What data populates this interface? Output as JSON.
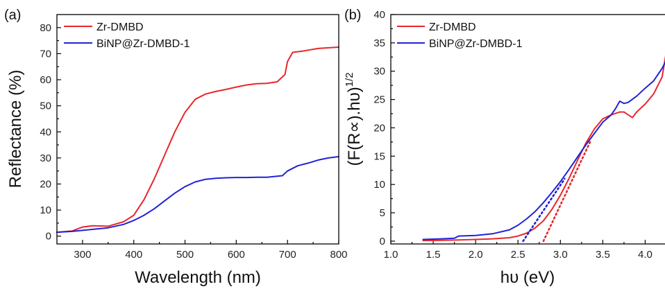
{
  "colors": {
    "red": "#e8262a",
    "blue": "#2121d6"
  },
  "chart_data": [
    {
      "panel_label": "(a)",
      "type": "line",
      "xlabel": "Wavelength (nm)",
      "ylabel": "Reflectance (%)",
      "xlim": [
        250,
        800
      ],
      "ylim": [
        -3,
        85
      ],
      "xticks": [
        300,
        400,
        500,
        600,
        700,
        800
      ],
      "yticks": [
        0,
        10,
        20,
        30,
        40,
        50,
        60,
        70,
        80
      ],
      "legend_position": "top-left",
      "series": [
        {
          "name": "Zr-DMBD",
          "color": "#e8262a",
          "x": [
            250,
            280,
            300,
            320,
            350,
            380,
            400,
            420,
            440,
            460,
            480,
            500,
            520,
            540,
            560,
            580,
            600,
            620,
            640,
            660,
            680,
            695,
            700,
            710,
            730,
            760,
            800
          ],
          "y": [
            1.5,
            2,
            3.5,
            4,
            3.8,
            5.5,
            8,
            14,
            22,
            31,
            40,
            47.5,
            52.5,
            54.5,
            55.5,
            56.3,
            57.2,
            58,
            58.5,
            58.6,
            59.2,
            62,
            67,
            70.5,
            71,
            72,
            72.5
          ]
        },
        {
          "name": "BiNP@Zr-DMBD-1",
          "color": "#2121d6",
          "x": [
            250,
            280,
            300,
            320,
            350,
            380,
            400,
            420,
            440,
            460,
            480,
            500,
            520,
            540,
            560,
            580,
            600,
            620,
            640,
            660,
            690,
            700,
            720,
            740,
            760,
            780,
            800
          ],
          "y": [
            1.5,
            1.8,
            2.2,
            2.6,
            3.2,
            4.5,
            6,
            8,
            10.5,
            13.5,
            16.5,
            19,
            20.8,
            21.8,
            22.2,
            22.4,
            22.5,
            22.5,
            22.6,
            22.6,
            23.2,
            25,
            27,
            28,
            29.2,
            30,
            30.5
          ]
        }
      ]
    },
    {
      "panel_label": "(b)",
      "type": "line",
      "xlabel": "hυ (eV)",
      "ylabel": "(F(R∝).hυ)",
      "ylabel_superscript": "1/2",
      "xlim": [
        1.0,
        4.25
      ],
      "ylim": [
        -0.5,
        40
      ],
      "xticks": [
        1.0,
        1.5,
        2.0,
        2.5,
        3.0,
        3.5,
        4.0
      ],
      "yticks": [
        0,
        5,
        10,
        15,
        20,
        25,
        30,
        35,
        40
      ],
      "legend_position": "top-left",
      "series": [
        {
          "name": "Zr-DMBD",
          "color": "#e8262a",
          "x": [
            1.38,
            1.6,
            1.8,
            2.0,
            2.2,
            2.4,
            2.5,
            2.6,
            2.7,
            2.8,
            2.9,
            3.0,
            3.1,
            3.2,
            3.3,
            3.4,
            3.5,
            3.6,
            3.7,
            3.75,
            3.8,
            3.85,
            3.9,
            4.0,
            4.1,
            4.2,
            4.25
          ],
          "y": [
            0.1,
            0.15,
            0.2,
            0.3,
            0.4,
            0.6,
            0.9,
            1.4,
            2.3,
            3.6,
            5.6,
            8.1,
            11,
            14.2,
            17.3,
            19.8,
            21.6,
            22.3,
            22.8,
            22.8,
            22.3,
            21.8,
            22.8,
            24.2,
            26,
            29,
            33.5
          ]
        },
        {
          "name": "BiNP@Zr-DMBD-1",
          "color": "#2121d6",
          "x": [
            1.38,
            1.6,
            1.75,
            1.8,
            2.0,
            2.2,
            2.4,
            2.5,
            2.6,
            2.7,
            2.8,
            2.9,
            3.0,
            3.1,
            3.2,
            3.3,
            3.4,
            3.5,
            3.6,
            3.65,
            3.7,
            3.75,
            3.8,
            3.9,
            4.0,
            4.1,
            4.2,
            4.25
          ],
          "y": [
            0.3,
            0.4,
            0.5,
            0.9,
            1.0,
            1.3,
            2.0,
            2.8,
            3.9,
            5.2,
            6.8,
            8.6,
            10.5,
            12.6,
            14.8,
            17.0,
            19.0,
            21.0,
            22.3,
            23.4,
            24.7,
            24.3,
            24.5,
            25.6,
            27.0,
            28.3,
            30.5,
            32.0
          ]
        }
      ],
      "fit_lines": [
        {
          "color": "#e8262a",
          "x": [
            2.8,
            3.35
          ],
          "y": [
            0,
            17.5
          ]
        },
        {
          "color": "#2121d6",
          "x": [
            2.56,
            3.05
          ],
          "y": [
            0,
            11.0
          ]
        }
      ]
    }
  ]
}
